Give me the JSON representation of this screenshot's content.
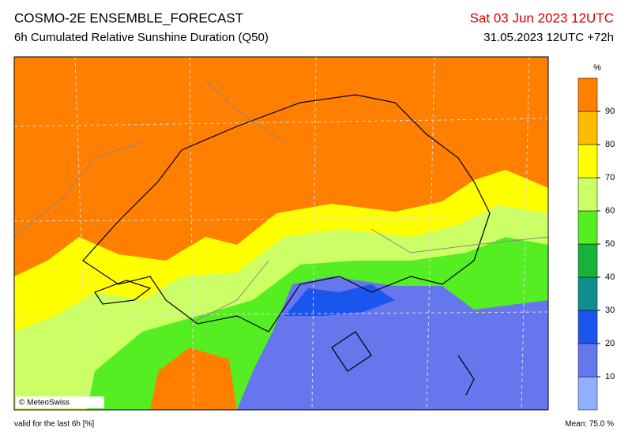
{
  "header": {
    "title": "COSMO-2E ENSEMBLE_FORECAST",
    "subtitle": "6h Cumulated Relative Sunshine Duration (Q50)",
    "valid_date": "Sat 03 Jun 2023 12UTC",
    "run": "31.05.2023 12UTC +72h"
  },
  "map": {
    "credit": "© MeteoSwiss"
  },
  "legend": {
    "unit": "%",
    "ticks": [
      10,
      20,
      30,
      40,
      50,
      60,
      70,
      80,
      90
    ],
    "colors": [
      "#8fb0ff",
      "#6677ee",
      "#1a55ee",
      "#0f8f8f",
      "#17b338",
      "#55ee22",
      "#ccff66",
      "#ffff00",
      "#ffbb00",
      "#ff7f00"
    ]
  },
  "footer": {
    "note": "valid for the last 6h [%]",
    "mean": "Mean:  75.0 %"
  }
}
